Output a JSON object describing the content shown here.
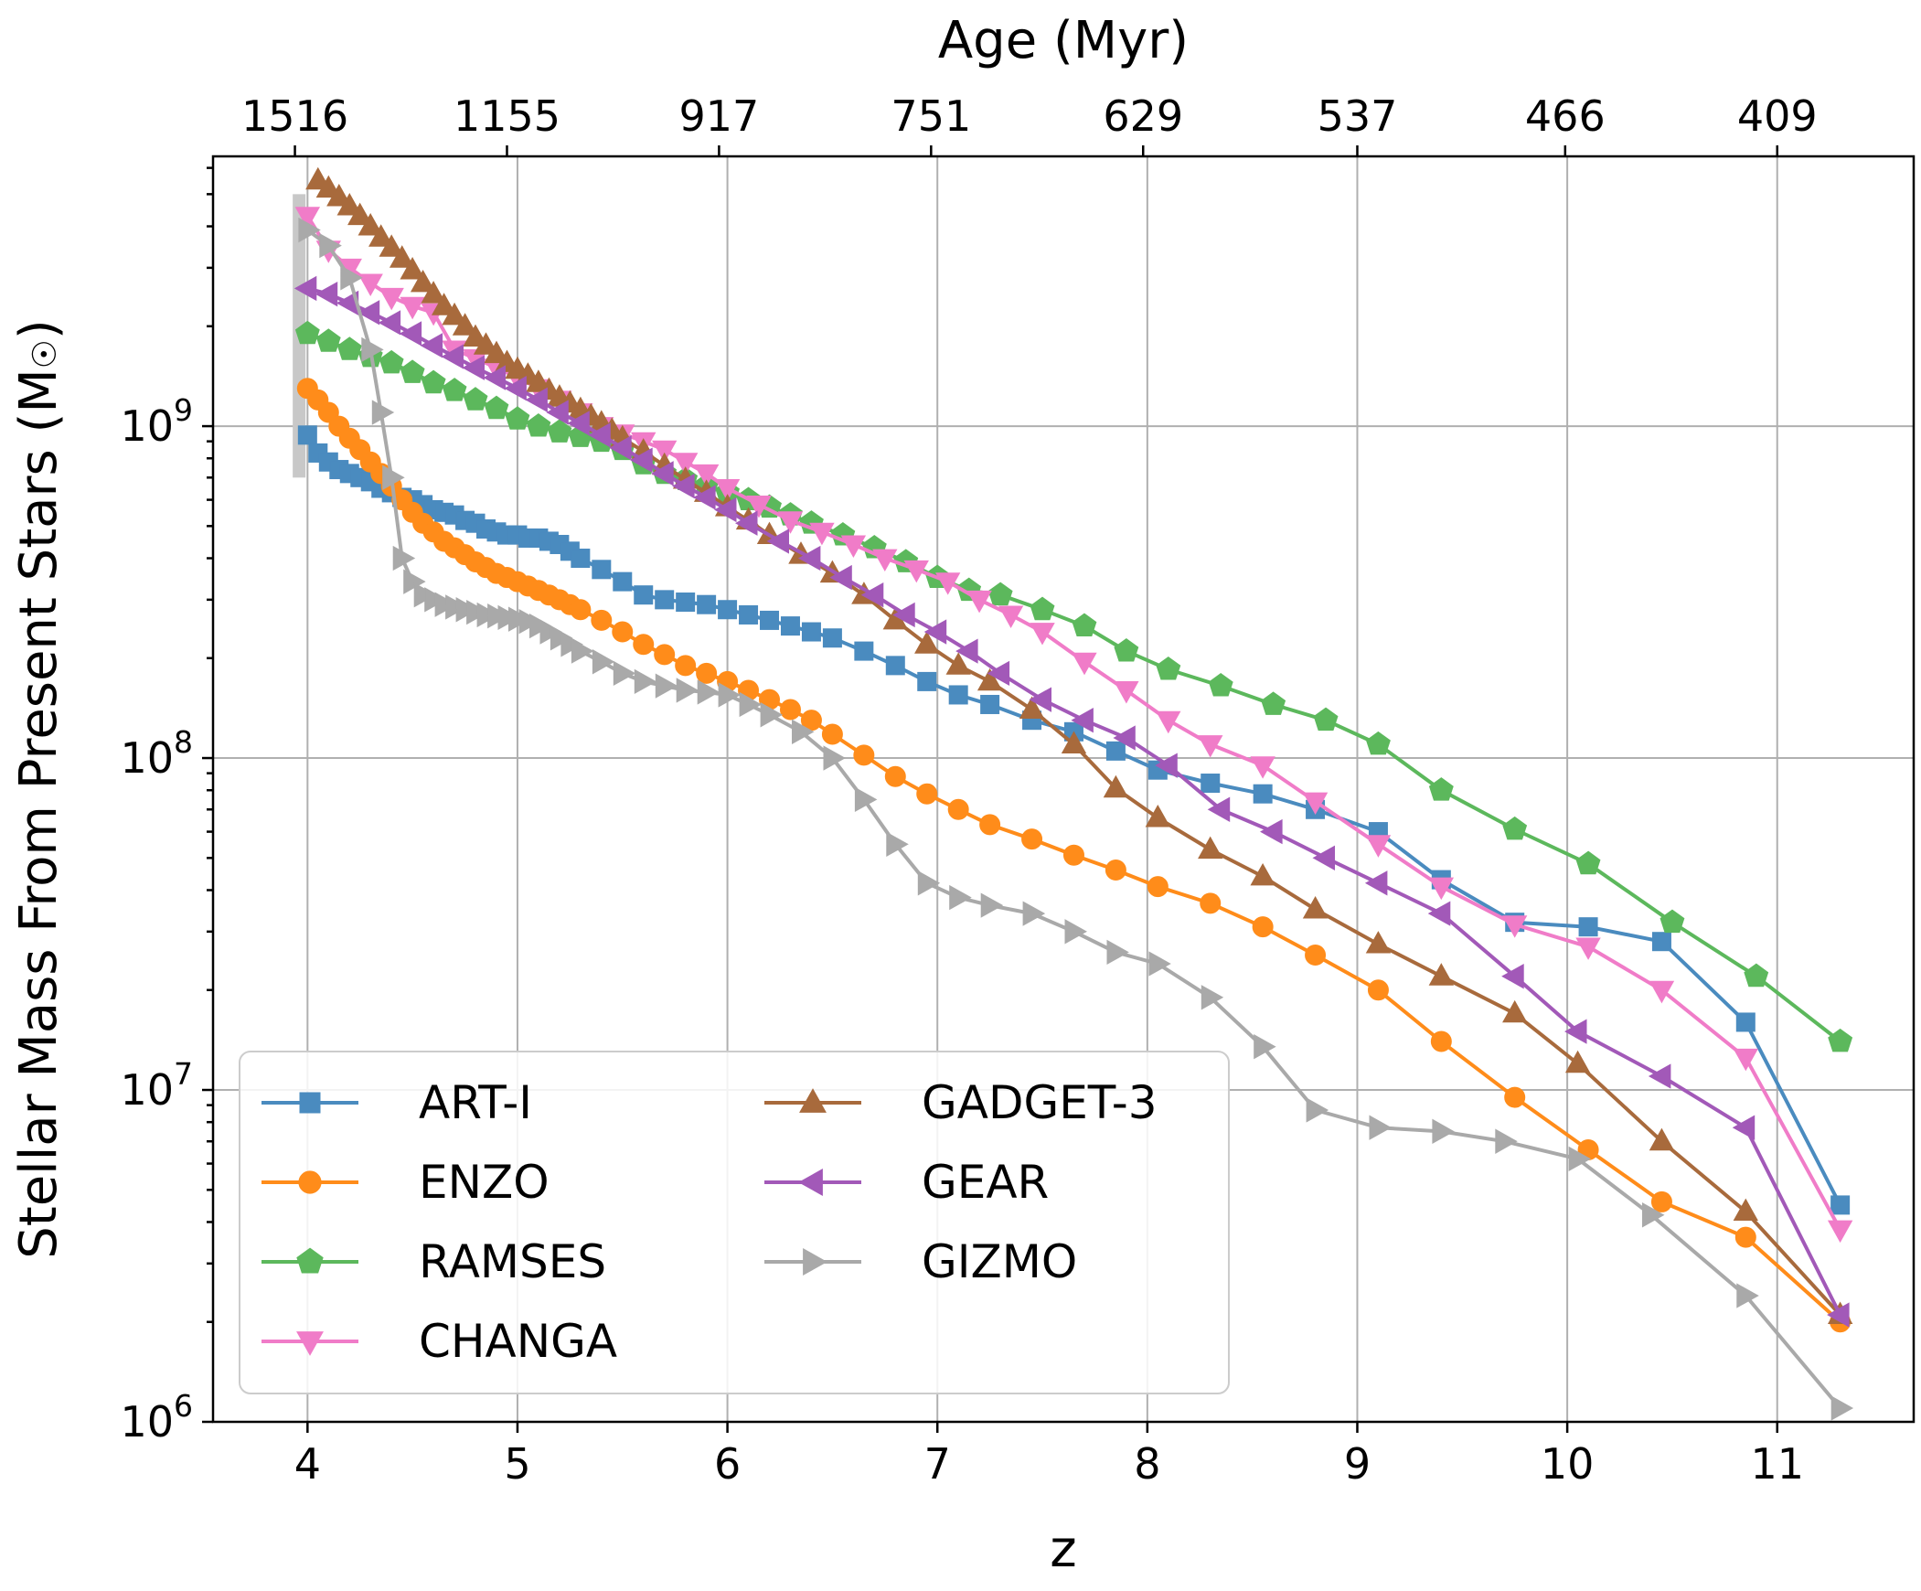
{
  "chart_data": {
    "type": "line",
    "title": "",
    "xlabel": "z",
    "ylabel": "Stellar Mass From Present Stars (M☉)",
    "ylabel_main": "Stellar Mass From Present Stars (M",
    "ylabel_sym": "☉",
    "ylabel_close": ")",
    "top_xlabel": "Age (Myr)",
    "xlim": [
      3.55,
      11.65
    ],
    "ylim": [
      1000000,
      6500000000
    ],
    "yscale": "log",
    "grid": true,
    "legend_position": "lower-left",
    "x_ticks": [
      {
        "value": 4,
        "label": "4"
      },
      {
        "value": 5,
        "label": "5"
      },
      {
        "value": 6,
        "label": "6"
      },
      {
        "value": 7,
        "label": "7"
      },
      {
        "value": 8,
        "label": "8"
      },
      {
        "value": 9,
        "label": "9"
      },
      {
        "value": 10,
        "label": "10"
      },
      {
        "value": 11,
        "label": "11"
      }
    ],
    "y_ticks": [
      {
        "value": 1000000,
        "base": "10",
        "exp": "6"
      },
      {
        "value": 10000000,
        "base": "10",
        "exp": "7"
      },
      {
        "value": 100000000,
        "base": "10",
        "exp": "8"
      },
      {
        "value": 1000000000,
        "base": "10",
        "exp": "9"
      }
    ],
    "top_ticks": [
      {
        "z": 3.94,
        "label": "1516"
      },
      {
        "z": 4.95,
        "label": "1155"
      },
      {
        "z": 5.96,
        "label": "917"
      },
      {
        "z": 6.97,
        "label": "751"
      },
      {
        "z": 7.98,
        "label": "629"
      },
      {
        "z": 9.0,
        "label": "537"
      },
      {
        "z": 9.99,
        "label": "466"
      },
      {
        "z": 11.0,
        "label": "409"
      }
    ],
    "error_band": {
      "z": 3.96,
      "low": 700000000,
      "high": 5000000000,
      "color": "#c8c8c8"
    },
    "series": [
      {
        "name": "ART-I",
        "color": "#4a8bbf",
        "marker": "square",
        "x": [
          4.0,
          4.05,
          4.1,
          4.15,
          4.2,
          4.25,
          4.3,
          4.35,
          4.4,
          4.45,
          4.5,
          4.55,
          4.6,
          4.65,
          4.7,
          4.75,
          4.8,
          4.85,
          4.9,
          4.95,
          5.0,
          5.05,
          5.1,
          5.15,
          5.2,
          5.25,
          5.3,
          5.4,
          5.5,
          5.6,
          5.7,
          5.8,
          5.9,
          6.0,
          6.1,
          6.2,
          6.3,
          6.4,
          6.5,
          6.65,
          6.8,
          6.95,
          7.1,
          7.25,
          7.45,
          7.65,
          7.85,
          8.05,
          8.3,
          8.55,
          8.8,
          9.1,
          9.4,
          9.75,
          10.1,
          10.45,
          10.85,
          11.3
        ],
        "y": [
          940000000,
          830000000,
          780000000,
          740000000,
          720000000,
          700000000,
          680000000,
          650000000,
          630000000,
          610000000,
          600000000,
          580000000,
          560000000,
          550000000,
          540000000,
          520000000,
          510000000,
          490000000,
          480000000,
          470000000,
          470000000,
          460000000,
          460000000,
          450000000,
          440000000,
          420000000,
          400000000,
          370000000,
          340000000,
          310000000,
          300000000,
          295000000,
          290000000,
          280000000,
          270000000,
          260000000,
          250000000,
          240000000,
          230000000,
          210000000,
          190000000,
          170000000,
          155000000,
          145000000,
          130000000,
          120000000,
          105000000,
          92000000,
          84000000,
          78000000,
          70000000,
          60000000,
          43000000,
          32000000,
          31000000,
          28000000,
          16000000,
          4500000
        ]
      },
      {
        "name": "ENZO",
        "color": "#ff8c1a",
        "marker": "circle",
        "x": [
          4.0,
          4.05,
          4.1,
          4.15,
          4.2,
          4.25,
          4.3,
          4.35,
          4.4,
          4.45,
          4.5,
          4.55,
          4.6,
          4.65,
          4.7,
          4.75,
          4.8,
          4.85,
          4.9,
          4.95,
          5.0,
          5.05,
          5.1,
          5.15,
          5.2,
          5.25,
          5.3,
          5.4,
          5.5,
          5.6,
          5.7,
          5.8,
          5.9,
          6.0,
          6.1,
          6.2,
          6.3,
          6.4,
          6.5,
          6.65,
          6.8,
          6.95,
          7.1,
          7.25,
          7.45,
          7.65,
          7.85,
          8.05,
          8.3,
          8.55,
          8.8,
          9.1,
          9.4,
          9.75,
          10.1,
          10.45,
          10.85,
          11.3
        ],
        "y": [
          1300000000,
          1200000000,
          1100000000,
          1000000000,
          920000000,
          850000000,
          780000000,
          720000000,
          660000000,
          600000000,
          550000000,
          510000000,
          480000000,
          450000000,
          430000000,
          410000000,
          390000000,
          375000000,
          360000000,
          350000000,
          340000000,
          330000000,
          320000000,
          310000000,
          300000000,
          290000000,
          280000000,
          260000000,
          240000000,
          220000000,
          205000000,
          190000000,
          180000000,
          170000000,
          160000000,
          150000000,
          140000000,
          130000000,
          118000000,
          102000000,
          88000000,
          78000000,
          70000000,
          63000000,
          57000000,
          51000000,
          46000000,
          41000000,
          36500000,
          31000000,
          25500000,
          20000000,
          14000000,
          9500000,
          6600000,
          4600000,
          3600000,
          2000000
        ]
      },
      {
        "name": "RAMSES",
        "color": "#5cb85c",
        "marker": "pentagon",
        "x": [
          4.0,
          4.1,
          4.2,
          4.3,
          4.4,
          4.5,
          4.6,
          4.7,
          4.8,
          4.9,
          5.0,
          5.1,
          5.2,
          5.3,
          5.4,
          5.5,
          5.6,
          5.7,
          5.8,
          5.9,
          6.0,
          6.1,
          6.2,
          6.3,
          6.4,
          6.55,
          6.7,
          6.85,
          7.0,
          7.15,
          7.3,
          7.5,
          7.7,
          7.9,
          8.1,
          8.35,
          8.6,
          8.85,
          9.1,
          9.4,
          9.75,
          10.1,
          10.5,
          10.9,
          11.3
        ],
        "y": [
          1900000000,
          1800000000,
          1700000000,
          1620000000,
          1550000000,
          1450000000,
          1350000000,
          1280000000,
          1200000000,
          1130000000,
          1050000000,
          1000000000,
          960000000,
          930000000,
          900000000,
          850000000,
          770000000,
          720000000,
          690000000,
          660000000,
          630000000,
          600000000,
          570000000,
          540000000,
          510000000,
          470000000,
          430000000,
          390000000,
          350000000,
          320000000,
          310000000,
          280000000,
          250000000,
          210000000,
          185000000,
          165000000,
          145000000,
          130000000,
          110000000,
          80000000,
          61000000,
          48000000,
          32000000,
          22000000,
          14000000
        ]
      },
      {
        "name": "CHANGA",
        "color": "#f07cc8",
        "marker": "triangle-down",
        "x": [
          4.0,
          4.1,
          4.2,
          4.3,
          4.4,
          4.5,
          4.6,
          4.7,
          4.8,
          4.9,
          5.0,
          5.1,
          5.2,
          5.3,
          5.4,
          5.5,
          5.6,
          5.7,
          5.8,
          5.9,
          6.0,
          6.15,
          6.3,
          6.45,
          6.6,
          6.75,
          6.9,
          7.05,
          7.2,
          7.35,
          7.5,
          7.7,
          7.9,
          8.1,
          8.3,
          8.55,
          8.8,
          9.1,
          9.4,
          9.75,
          10.1,
          10.45,
          10.85,
          11.3
        ],
        "y": [
          4300000000,
          3400000000,
          3000000000,
          2700000000,
          2450000000,
          2300000000,
          2200000000,
          1700000000,
          1600000000,
          1500000000,
          1400000000,
          1300000000,
          1200000000,
          1100000000,
          1000000000,
          950000000,
          900000000,
          850000000,
          780000000,
          720000000,
          650000000,
          580000000,
          520000000,
          480000000,
          440000000,
          400000000,
          370000000,
          340000000,
          300000000,
          270000000,
          240000000,
          195000000,
          160000000,
          130000000,
          110000000,
          95000000,
          74000000,
          55000000,
          41000000,
          31500000,
          27000000,
          20000000,
          12500000,
          3800000
        ]
      },
      {
        "name": "GADGET-3",
        "color": "#a86a3c",
        "marker": "triangle-up",
        "x": [
          4.05,
          4.1,
          4.15,
          4.2,
          4.25,
          4.3,
          4.35,
          4.4,
          4.45,
          4.5,
          4.55,
          4.6,
          4.65,
          4.7,
          4.75,
          4.8,
          4.85,
          4.9,
          4.95,
          5.0,
          5.05,
          5.1,
          5.15,
          5.2,
          5.25,
          5.3,
          5.35,
          5.4,
          5.45,
          5.5,
          5.6,
          5.7,
          5.8,
          5.9,
          6.0,
          6.1,
          6.2,
          6.35,
          6.5,
          6.65,
          6.8,
          6.95,
          7.1,
          7.25,
          7.45,
          7.65,
          7.85,
          8.05,
          8.3,
          8.55,
          8.8,
          9.1,
          9.4,
          9.75,
          10.05,
          10.45,
          10.85,
          11.3
        ],
        "y": [
          5500000000,
          5200000000,
          4900000000,
          4600000000,
          4300000000,
          4000000000,
          3700000000,
          3450000000,
          3200000000,
          2950000000,
          2700000000,
          2500000000,
          2300000000,
          2150000000,
          2000000000,
          1850000000,
          1750000000,
          1650000000,
          1550000000,
          1480000000,
          1420000000,
          1350000000,
          1280000000,
          1220000000,
          1170000000,
          1120000000,
          1070000000,
          1020000000,
          970000000,
          920000000,
          840000000,
          760000000,
          690000000,
          630000000,
          570000000,
          520000000,
          470000000,
          410000000,
          360000000,
          310000000,
          260000000,
          220000000,
          190000000,
          170000000,
          140000000,
          110000000,
          81000000,
          66000000,
          53000000,
          44000000,
          35000000,
          27500000,
          22000000,
          17000000,
          12000000,
          7000000,
          4300000,
          2100000
        ]
      },
      {
        "name": "GEAR",
        "color": "#a259b8",
        "marker": "triangle-left",
        "x": [
          4.0,
          4.1,
          4.2,
          4.3,
          4.4,
          4.5,
          4.6,
          4.7,
          4.8,
          4.9,
          5.0,
          5.1,
          5.2,
          5.3,
          5.4,
          5.5,
          5.6,
          5.7,
          5.8,
          5.9,
          6.0,
          6.1,
          6.25,
          6.4,
          6.55,
          6.7,
          6.85,
          7.0,
          7.15,
          7.3,
          7.5,
          7.7,
          7.9,
          8.1,
          8.35,
          8.6,
          8.85,
          9.1,
          9.4,
          9.75,
          10.05,
          10.45,
          10.85,
          11.3
        ],
        "y": [
          2600000000,
          2500000000,
          2350000000,
          2200000000,
          2050000000,
          1900000000,
          1750000000,
          1620000000,
          1500000000,
          1400000000,
          1300000000,
          1200000000,
          1100000000,
          1020000000,
          940000000,
          860000000,
          790000000,
          720000000,
          660000000,
          610000000,
          560000000,
          510000000,
          450000000,
          400000000,
          350000000,
          310000000,
          270000000,
          240000000,
          210000000,
          180000000,
          150000000,
          130000000,
          115000000,
          95000000,
          70000000,
          60000000,
          50000000,
          42000000,
          34000000,
          22000000,
          15000000,
          11000000,
          7700000,
          2100000
        ]
      },
      {
        "name": "GIZMO",
        "color": "#a9a9a9",
        "marker": "triangle-right",
        "x": [
          4.0,
          4.1,
          4.2,
          4.3,
          4.35,
          4.4,
          4.45,
          4.5,
          4.55,
          4.6,
          4.65,
          4.7,
          4.75,
          4.8,
          4.85,
          4.9,
          4.95,
          5.0,
          5.05,
          5.1,
          5.15,
          5.2,
          5.25,
          5.3,
          5.4,
          5.5,
          5.6,
          5.7,
          5.8,
          5.9,
          6.0,
          6.1,
          6.2,
          6.35,
          6.5,
          6.65,
          6.8,
          6.95,
          7.1,
          7.25,
          7.45,
          7.65,
          7.85,
          8.05,
          8.3,
          8.55,
          8.8,
          9.1,
          9.4,
          9.7,
          10.05,
          10.4,
          10.85,
          11.3
        ],
        "y": [
          3900000000,
          3500000000,
          2800000000,
          1700000000,
          1100000000,
          700000000,
          400000000,
          340000000,
          310000000,
          300000000,
          290000000,
          285000000,
          280000000,
          275000000,
          270000000,
          268000000,
          265000000,
          262000000,
          258000000,
          250000000,
          240000000,
          230000000,
          220000000,
          210000000,
          195000000,
          180000000,
          170000000,
          165000000,
          160000000,
          158000000,
          155000000,
          145000000,
          135000000,
          120000000,
          100000000,
          75000000,
          55000000,
          42000000,
          38000000,
          36000000,
          34000000,
          30000000,
          26000000,
          24000000,
          19000000,
          13500000,
          8700000,
          7700000,
          7500000,
          7000000,
          6200000,
          4200000,
          2400000,
          1100000
        ]
      }
    ]
  }
}
